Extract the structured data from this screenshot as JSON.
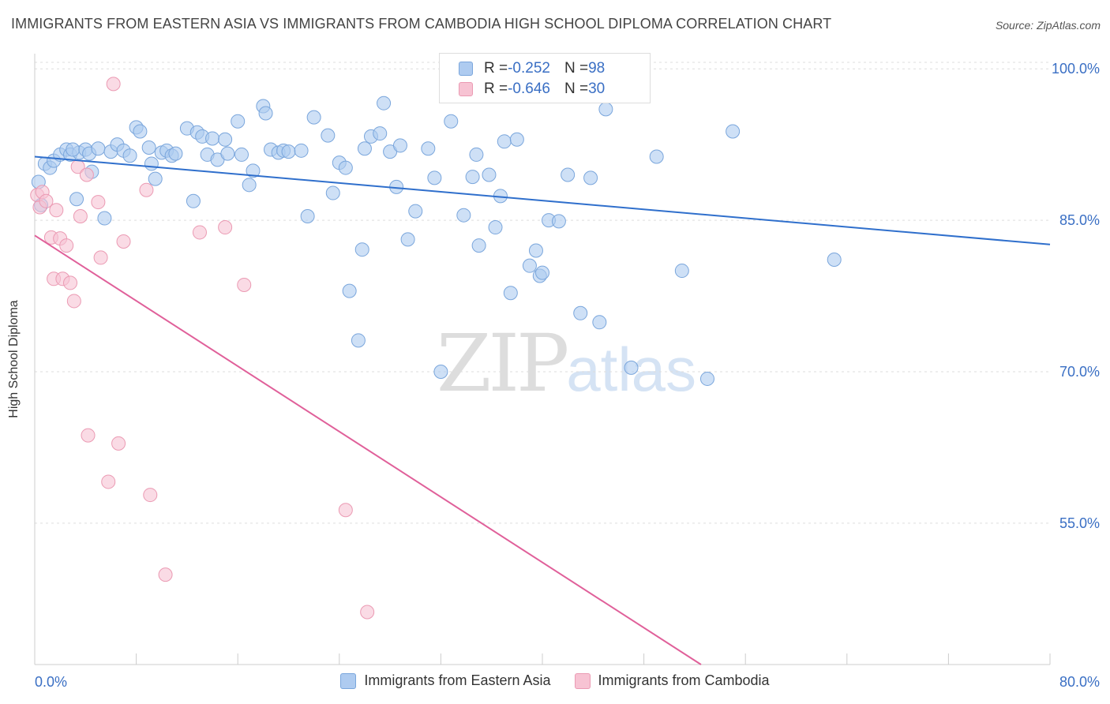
{
  "title": "IMMIGRANTS FROM EASTERN ASIA VS IMMIGRANTS FROM CAMBODIA HIGH SCHOOL DIPLOMA CORRELATION CHART",
  "source": "Source: ZipAtlas.com",
  "watermark": {
    "zip": "ZIP",
    "atlas": "atlas"
  },
  "stats": [
    {
      "r_label": "R = ",
      "r_value": "-0.252",
      "n_label": "N = ",
      "n_value": "98"
    },
    {
      "r_label": "R = ",
      "r_value": "-0.646",
      "n_label": "N = ",
      "n_value": "30"
    }
  ],
  "colors": {
    "blue_fill": "#aecbf0",
    "blue_stroke": "#7aa6dc",
    "blue_line": "#2f6fcc",
    "pink_fill": "#f7c3d3",
    "pink_stroke": "#eb9ab3",
    "pink_line": "#e0609a",
    "grid": "#dddddd",
    "tick_label": "#3a6fc4"
  },
  "chart_data": {
    "type": "scatter",
    "title": "IMMIGRANTS FROM EASTERN ASIA VS IMMIGRANTS FROM CAMBODIA HIGH SCHOOL DIPLOMA CORRELATION CHART",
    "xlabel": "",
    "ylabel": "High School Diploma",
    "xlim": [
      0,
      80
    ],
    "ylim": [
      41,
      101.5
    ],
    "x_tick_labels": [
      "0.0%",
      "80.0%"
    ],
    "y_ticks": [
      55,
      70,
      85,
      100
    ],
    "y_tick_labels": [
      "55.0%",
      "70.0%",
      "85.0%",
      "100.0%"
    ],
    "grid": true,
    "legend_position": "bottom-center",
    "series": [
      {
        "name": "Immigrants from Eastern Asia",
        "color": "#aecbf0",
        "trend": {
          "x": [
            0,
            80
          ],
          "y": [
            91.3,
            82.6
          ]
        },
        "points": [
          [
            0.3,
            88.8
          ],
          [
            0.5,
            86.5
          ],
          [
            0.8,
            90.6
          ],
          [
            1.2,
            90.2
          ],
          [
            1.5,
            90.9
          ],
          [
            2.0,
            91.5
          ],
          [
            2.5,
            92.0
          ],
          [
            2.8,
            91.5
          ],
          [
            3.5,
            91.7
          ],
          [
            3.0,
            92.0
          ],
          [
            3.3,
            87.1
          ],
          [
            4.0,
            92.0
          ],
          [
            4.5,
            89.8
          ],
          [
            4.3,
            91.6
          ],
          [
            5.0,
            92.1
          ],
          [
            5.5,
            85.2
          ],
          [
            6.0,
            91.8
          ],
          [
            6.5,
            92.5
          ],
          [
            7.0,
            91.9
          ],
          [
            7.5,
            91.4
          ],
          [
            8.0,
            94.2
          ],
          [
            8.3,
            93.8
          ],
          [
            9.0,
            92.2
          ],
          [
            9.2,
            90.6
          ],
          [
            9.5,
            89.1
          ],
          [
            10.0,
            91.7
          ],
          [
            10.4,
            91.9
          ],
          [
            10.8,
            91.4
          ],
          [
            11.1,
            91.6
          ],
          [
            12.0,
            94.1
          ],
          [
            12.5,
            86.9
          ],
          [
            12.8,
            93.7
          ],
          [
            13.2,
            93.3
          ],
          [
            13.6,
            91.5
          ],
          [
            14.0,
            93.1
          ],
          [
            14.4,
            91.0
          ],
          [
            15.0,
            93.0
          ],
          [
            15.2,
            91.6
          ],
          [
            16.0,
            94.8
          ],
          [
            16.3,
            91.5
          ],
          [
            16.9,
            88.5
          ],
          [
            17.2,
            89.9
          ],
          [
            18.0,
            96.3
          ],
          [
            18.2,
            95.6
          ],
          [
            18.6,
            92.0
          ],
          [
            19.2,
            91.7
          ],
          [
            19.6,
            91.9
          ],
          [
            20.0,
            91.8
          ],
          [
            21.0,
            91.9
          ],
          [
            21.5,
            85.4
          ],
          [
            22.0,
            95.2
          ],
          [
            23.1,
            93.4
          ],
          [
            23.5,
            87.7
          ],
          [
            24.0,
            90.7
          ],
          [
            24.5,
            90.2
          ],
          [
            24.8,
            78.0
          ],
          [
            25.5,
            73.1
          ],
          [
            25.8,
            82.1
          ],
          [
            26.0,
            92.1
          ],
          [
            26.5,
            93.3
          ],
          [
            27.2,
            93.6
          ],
          [
            27.5,
            96.6
          ],
          [
            28.0,
            91.8
          ],
          [
            28.5,
            88.3
          ],
          [
            28.8,
            92.4
          ],
          [
            29.4,
            83.1
          ],
          [
            30.0,
            85.9
          ],
          [
            31.0,
            92.1
          ],
          [
            31.5,
            89.2
          ],
          [
            32.0,
            70.0
          ],
          [
            32.8,
            94.8
          ],
          [
            33.8,
            85.5
          ],
          [
            34.5,
            89.3
          ],
          [
            34.8,
            91.5
          ],
          [
            35.0,
            82.5
          ],
          [
            35.8,
            89.5
          ],
          [
            36.3,
            84.3
          ],
          [
            36.7,
            87.4
          ],
          [
            37.0,
            92.8
          ],
          [
            37.5,
            77.8
          ],
          [
            38.0,
            93.0
          ],
          [
            39.0,
            80.5
          ],
          [
            39.5,
            82.0
          ],
          [
            39.8,
            79.5
          ],
          [
            40.0,
            79.8
          ],
          [
            40.5,
            85.0
          ],
          [
            41.3,
            84.9
          ],
          [
            42.0,
            89.5
          ],
          [
            43.0,
            75.8
          ],
          [
            43.8,
            89.2
          ],
          [
            44.5,
            74.9
          ],
          [
            45.0,
            96.0
          ],
          [
            47.0,
            70.4
          ],
          [
            49.0,
            91.3
          ],
          [
            51.0,
            80.0
          ],
          [
            53.0,
            69.3
          ],
          [
            55.0,
            93.8
          ],
          [
            63.0,
            81.1
          ]
        ]
      },
      {
        "name": "Immigrants from Cambodia",
        "color": "#f7c3d3",
        "trend": {
          "x": [
            0,
            52.5
          ],
          "y": [
            83.5,
            41
          ]
        },
        "points": [
          [
            0.2,
            87.5
          ],
          [
            0.4,
            86.3
          ],
          [
            0.6,
            87.8
          ],
          [
            0.9,
            86.9
          ],
          [
            1.3,
            83.3
          ],
          [
            1.5,
            79.2
          ],
          [
            1.7,
            86.0
          ],
          [
            2.0,
            83.2
          ],
          [
            2.2,
            79.2
          ],
          [
            2.5,
            82.5
          ],
          [
            2.8,
            78.8
          ],
          [
            3.1,
            77.0
          ],
          [
            3.4,
            90.3
          ],
          [
            3.6,
            85.4
          ],
          [
            4.1,
            89.5
          ],
          [
            4.2,
            63.7
          ],
          [
            5.0,
            86.8
          ],
          [
            5.2,
            81.3
          ],
          [
            5.8,
            59.1
          ],
          [
            6.2,
            98.5
          ],
          [
            6.6,
            62.9
          ],
          [
            7.0,
            82.9
          ],
          [
            8.8,
            88.0
          ],
          [
            9.1,
            57.8
          ],
          [
            10.3,
            49.9
          ],
          [
            13.0,
            83.8
          ],
          [
            15.0,
            84.3
          ],
          [
            16.5,
            78.6
          ],
          [
            24.5,
            56.3
          ],
          [
            26.2,
            46.2
          ]
        ]
      }
    ]
  },
  "legend_items": [
    "Immigrants from Eastern Asia",
    "Immigrants from Cambodia"
  ]
}
